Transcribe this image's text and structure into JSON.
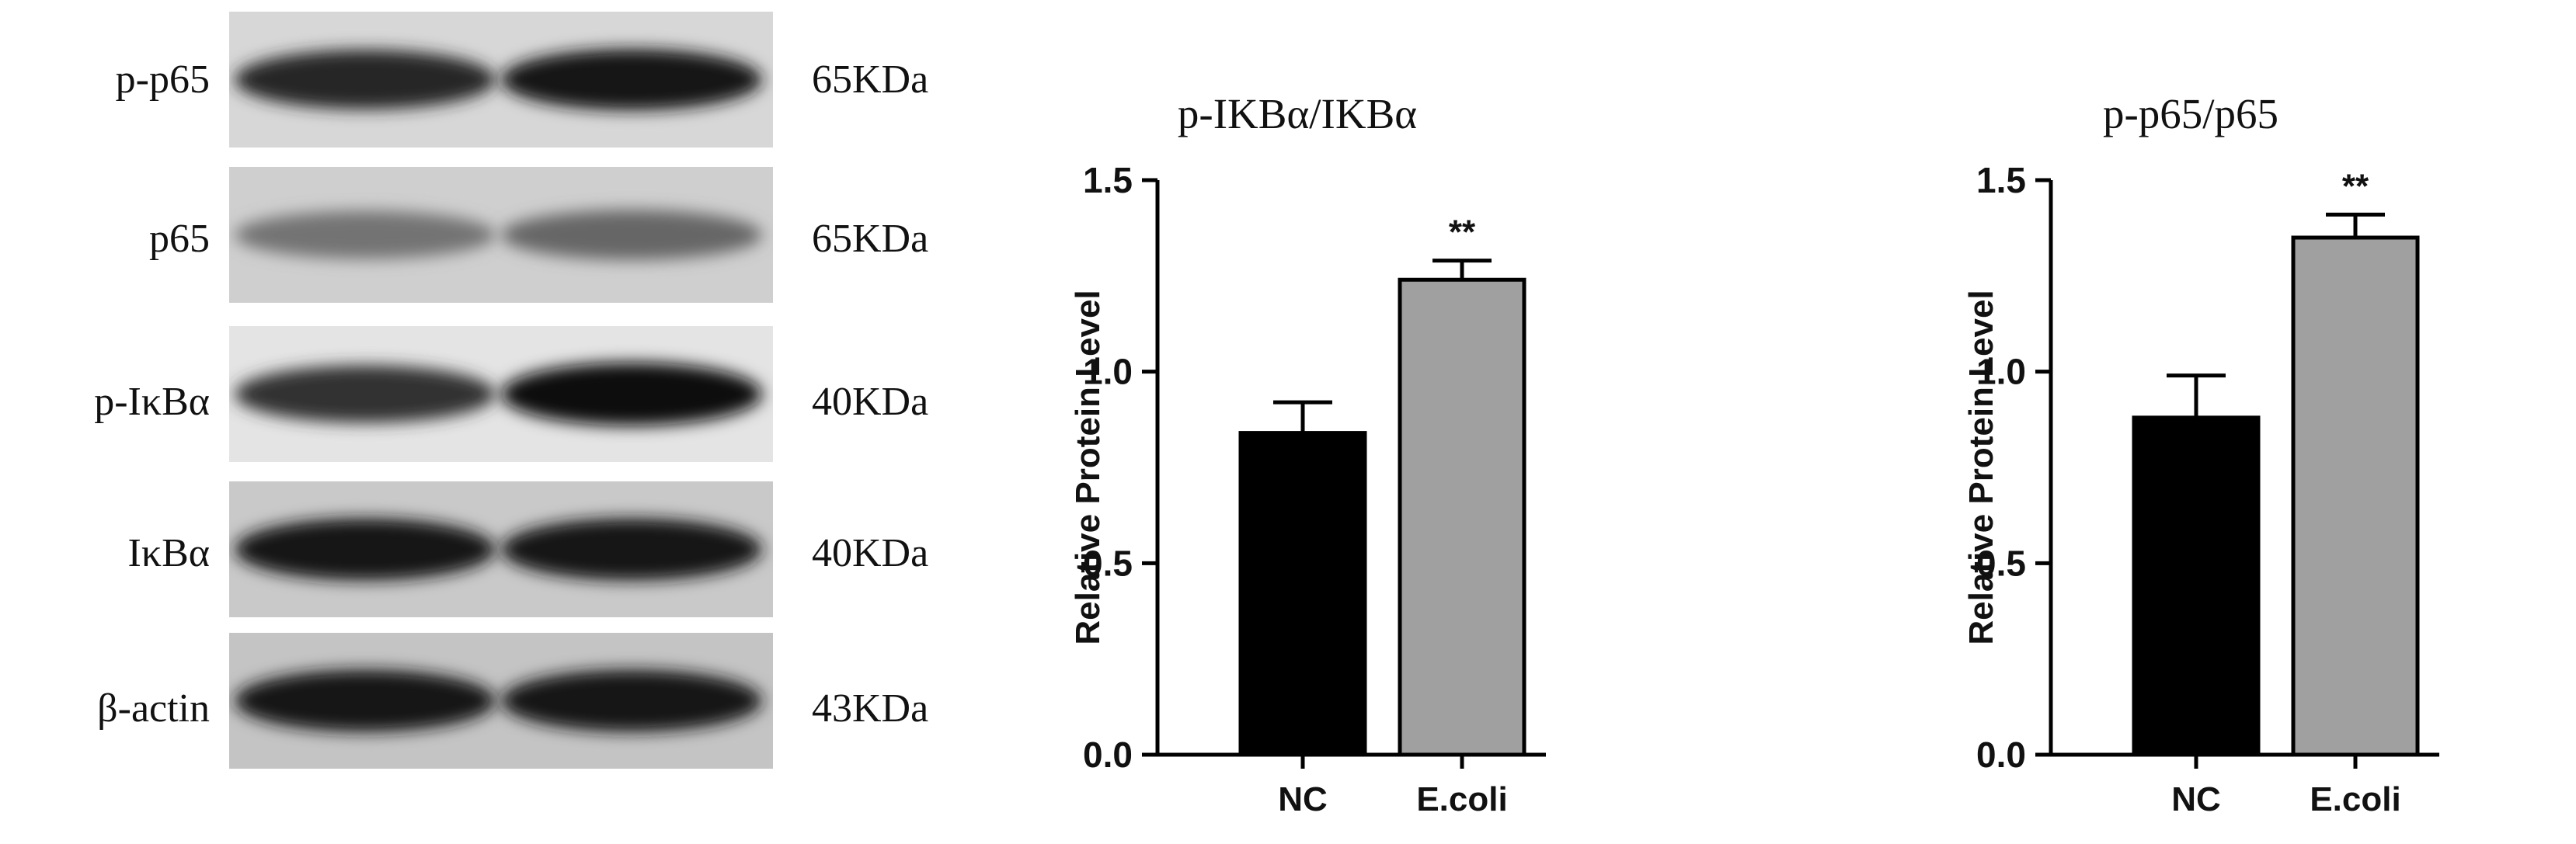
{
  "western_blot": {
    "rows": [
      {
        "protein": "p-p65",
        "mw": "65KDa",
        "band_intensity": [
          0.85,
          0.9
        ],
        "background": "#d7d7d7"
      },
      {
        "protein": "p65",
        "mw": "65KDa",
        "band_intensity": [
          0.55,
          0.6
        ],
        "background": "#cfcfcf"
      },
      {
        "protein": "p-IκBα",
        "mw": "40KDa",
        "band_intensity": [
          0.8,
          0.95
        ],
        "background": "#e4e4e4"
      },
      {
        "protein": "IκBα",
        "mw": "40KDa",
        "band_intensity": [
          0.92,
          0.92
        ],
        "background": "#c9c9c9"
      },
      {
        "protein": "β-actin",
        "mw": "43KDa",
        "band_intensity": [
          0.92,
          0.92
        ],
        "background": "#c4c4c4"
      }
    ]
  },
  "chart_data": [
    {
      "type": "bar",
      "title": "p-IKBα/IKBα",
      "ylabel": "Relative Protein Level",
      "categories": [
        "NC",
        "E.coli"
      ],
      "values": [
        0.84,
        1.24
      ],
      "errors": [
        0.08,
        0.05
      ],
      "significance": [
        "",
        "**"
      ],
      "ylim": [
        0,
        1.5
      ],
      "yticks": [
        "0.0",
        "0.5",
        "1.0",
        "1.5"
      ],
      "colors": [
        "#000000",
        "#a0a0a0"
      ]
    },
    {
      "type": "bar",
      "title": "p-p65/p65",
      "ylabel": "Relative Protein Level",
      "categories": [
        "NC",
        "E.coli"
      ],
      "values": [
        0.88,
        1.35
      ],
      "errors": [
        0.11,
        0.06
      ],
      "significance": [
        "",
        "**"
      ],
      "ylim": [
        0,
        1.5
      ],
      "yticks": [
        "0.0",
        "0.5",
        "1.0",
        "1.5"
      ],
      "colors": [
        "#000000",
        "#a0a0a0"
      ]
    }
  ]
}
